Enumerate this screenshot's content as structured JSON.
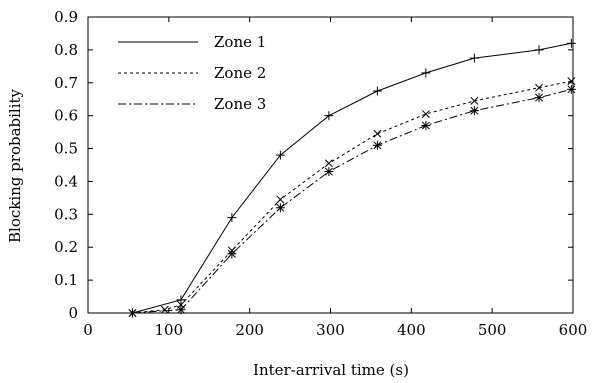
{
  "chart_data": {
    "type": "line",
    "title": "",
    "xlabel": "Inter-arrival time (s)",
    "ylabel": "Blocking probability",
    "xlim": [
      0,
      600
    ],
    "ylim": [
      0,
      0.9
    ],
    "xticks": [
      0,
      100,
      200,
      300,
      400,
      500,
      600
    ],
    "yticks": [
      0,
      0.1,
      0.2,
      0.3,
      0.4,
      0.5,
      0.6,
      0.7,
      0.8,
      0.9
    ],
    "xtick_labels": [
      "0",
      "100",
      "200",
      "300",
      "400",
      "500",
      "600"
    ],
    "ytick_labels": [
      "0",
      "0.1",
      "0.2",
      "0.3",
      "0.4",
      "0.5",
      "0.6",
      "0.7",
      "0.8",
      "0.9"
    ],
    "grid": false,
    "legend_position": "top-left",
    "series": [
      {
        "name": "Zone 1",
        "line_style": "solid",
        "marker": "plus",
        "color": "#000000",
        "x": [
          55,
          115,
          178,
          238,
          298,
          358,
          418,
          478,
          558,
          598
        ],
        "y": [
          0.0,
          0.04,
          0.29,
          0.48,
          0.6,
          0.675,
          0.73,
          0.775,
          0.8,
          0.82
        ]
      },
      {
        "name": "Zone 2",
        "line_style": "dotted",
        "marker": "cross",
        "color": "#000000",
        "x": [
          55,
          95,
          115,
          178,
          238,
          298,
          358,
          418,
          478,
          558,
          598
        ],
        "y": [
          0.0,
          0.01,
          0.025,
          0.19,
          0.345,
          0.455,
          0.545,
          0.605,
          0.645,
          0.685,
          0.705
        ]
      },
      {
        "name": "Zone 3",
        "line_style": "dashdot",
        "marker": "star",
        "color": "#000000",
        "x": [
          55,
          115,
          178,
          238,
          298,
          358,
          418,
          478,
          558,
          598
        ],
        "y": [
          0.0,
          0.01,
          0.18,
          0.32,
          0.43,
          0.51,
          0.57,
          0.615,
          0.655,
          0.68
        ]
      }
    ]
  }
}
